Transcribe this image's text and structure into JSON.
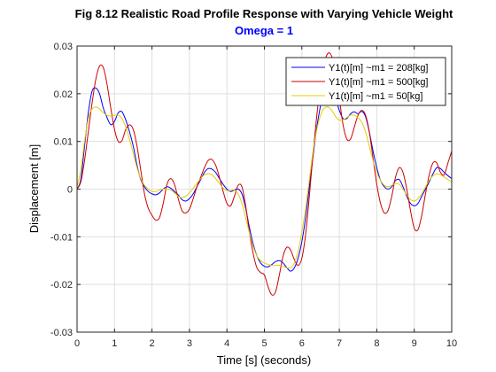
{
  "chart_data": {
    "type": "line",
    "title": "Fig 8.12 Realistic Road Profile Response with Varying Vehicle Weight",
    "subtitle": "Omega = 1",
    "subtitle_color": "#0000ff",
    "xlabel": "Time [s] (seconds)",
    "ylabel": "Displacement [m]",
    "xlim": [
      0,
      10
    ],
    "ylim": [
      -0.03,
      0.03
    ],
    "xticks": [
      0,
      1,
      2,
      3,
      4,
      5,
      6,
      7,
      8,
      9,
      10
    ],
    "xtick_labels": [
      "0",
      "1",
      "2",
      "3",
      "4",
      "5",
      "6",
      "7",
      "8",
      "9",
      "10"
    ],
    "yticks": [
      -0.03,
      -0.02,
      -0.01,
      0,
      0.01,
      0.02,
      0.03
    ],
    "ytick_labels": [
      "-0.03",
      "-0.02",
      "-0.01",
      "0",
      "0.01",
      "0.02",
      "0.03"
    ],
    "grid": true,
    "legend_position": "top-right",
    "series": [
      {
        "name": "Y1(t)[m] ~m1 = 208[kg]",
        "color": "#0000ff",
        "points": [
          [
            0,
            0
          ],
          [
            0.1,
            0.002
          ],
          [
            0.2,
            0.009
          ],
          [
            0.3,
            0.016
          ],
          [
            0.4,
            0.0205
          ],
          [
            0.5,
            0.0212
          ],
          [
            0.6,
            0.02
          ],
          [
            0.7,
            0.017
          ],
          [
            0.8,
            0.015
          ],
          [
            0.9,
            0.0135
          ],
          [
            1.0,
            0.0142
          ],
          [
            1.1,
            0.016
          ],
          [
            1.2,
            0.0162
          ],
          [
            1.3,
            0.0145
          ],
          [
            1.4,
            0.012
          ],
          [
            1.5,
            0.009
          ],
          [
            1.6,
            0.005
          ],
          [
            1.7,
            0.002
          ],
          [
            1.8,
            0.0005
          ],
          [
            1.9,
            -0.0005
          ],
          [
            2.0,
            -0.001
          ],
          [
            2.1,
            -0.0012
          ],
          [
            2.2,
            -0.0008
          ],
          [
            2.3,
            0
          ],
          [
            2.4,
            0.0005
          ],
          [
            2.5,
            0.0002
          ],
          [
            2.6,
            -0.0005
          ],
          [
            2.7,
            -0.0012
          ],
          [
            2.8,
            -0.0022
          ],
          [
            2.9,
            -0.0025
          ],
          [
            3.0,
            -0.002
          ],
          [
            3.1,
            -0.001
          ],
          [
            3.2,
            0.0005
          ],
          [
            3.3,
            0.002
          ],
          [
            3.4,
            0.0035
          ],
          [
            3.5,
            0.0043
          ],
          [
            3.6,
            0.0042
          ],
          [
            3.7,
            0.0035
          ],
          [
            3.8,
            0.0022
          ],
          [
            3.9,
            0.001
          ],
          [
            4.0,
            0
          ],
          [
            4.1,
            -0.0005
          ],
          [
            4.2,
            -0.0002
          ],
          [
            4.3,
            0
          ],
          [
            4.4,
            -0.001
          ],
          [
            4.5,
            -0.004
          ],
          [
            4.6,
            -0.008
          ],
          [
            4.7,
            -0.0115
          ],
          [
            4.8,
            -0.014
          ],
          [
            4.9,
            -0.0155
          ],
          [
            5.0,
            -0.0162
          ],
          [
            5.1,
            -0.0163
          ],
          [
            5.2,
            -0.0158
          ],
          [
            5.3,
            -0.0152
          ],
          [
            5.4,
            -0.015
          ],
          [
            5.5,
            -0.0155
          ],
          [
            5.6,
            -0.0165
          ],
          [
            5.7,
            -0.0172
          ],
          [
            5.8,
            -0.0165
          ],
          [
            5.9,
            -0.0145
          ],
          [
            6.0,
            -0.011
          ],
          [
            6.1,
            -0.006
          ],
          [
            6.2,
            0.0005
          ],
          [
            6.3,
            0.007
          ],
          [
            6.4,
            0.013
          ],
          [
            6.5,
            0.0175
          ],
          [
            6.6,
            0.0205
          ],
          [
            6.7,
            0.0218
          ],
          [
            6.8,
            0.0212
          ],
          [
            6.9,
            0.019
          ],
          [
            7.0,
            0.0165
          ],
          [
            7.1,
            0.0148
          ],
          [
            7.2,
            0.0148
          ],
          [
            7.3,
            0.0158
          ],
          [
            7.4,
            0.0162
          ],
          [
            7.5,
            0.0158
          ],
          [
            7.6,
            0.0163
          ],
          [
            7.7,
            0.0152
          ],
          [
            7.8,
            0.012
          ],
          [
            7.9,
            0.008
          ],
          [
            8.0,
            0.0045
          ],
          [
            8.1,
            0.0018
          ],
          [
            8.2,
            0.0005
          ],
          [
            8.3,
            0
          ],
          [
            8.4,
            0.0005
          ],
          [
            8.5,
            0.0018
          ],
          [
            8.6,
            0.002
          ],
          [
            8.7,
            0.0005
          ],
          [
            8.8,
            -0.0015
          ],
          [
            8.9,
            -0.003
          ],
          [
            9.0,
            -0.0035
          ],
          [
            9.1,
            -0.003
          ],
          [
            9.2,
            -0.0015
          ],
          [
            9.3,
            0
          ],
          [
            9.4,
            0.0015
          ],
          [
            9.5,
            0.0032
          ],
          [
            9.6,
            0.0045
          ],
          [
            9.7,
            0.0043
          ],
          [
            9.8,
            0.0035
          ],
          [
            9.9,
            0.0028
          ],
          [
            10.0,
            0.0022
          ]
        ]
      },
      {
        "name": "Y1(t)[m] ~m1 = 500[kg]",
        "color": "#cc0000",
        "points": [
          [
            0,
            0
          ],
          [
            0.1,
            0.0015
          ],
          [
            0.2,
            0.006
          ],
          [
            0.3,
            0.012
          ],
          [
            0.4,
            0.018
          ],
          [
            0.5,
            0.023
          ],
          [
            0.6,
            0.0258
          ],
          [
            0.7,
            0.0255
          ],
          [
            0.8,
            0.022
          ],
          [
            0.9,
            0.017
          ],
          [
            1.0,
            0.0125
          ],
          [
            1.1,
            0.01
          ],
          [
            1.2,
            0.0102
          ],
          [
            1.3,
            0.0125
          ],
          [
            1.4,
            0.0135
          ],
          [
            1.5,
            0.0125
          ],
          [
            1.6,
            0.009
          ],
          [
            1.7,
            0.004
          ],
          [
            1.8,
            -0.001
          ],
          [
            1.9,
            -0.004
          ],
          [
            2.0,
            -0.0055
          ],
          [
            2.1,
            -0.0065
          ],
          [
            2.2,
            -0.006
          ],
          [
            2.3,
            -0.003
          ],
          [
            2.4,
            0.001
          ],
          [
            2.5,
            0.0022
          ],
          [
            2.6,
            0.001
          ],
          [
            2.7,
            -0.002
          ],
          [
            2.8,
            -0.0045
          ],
          [
            2.9,
            -0.005
          ],
          [
            3.0,
            -0.0042
          ],
          [
            3.1,
            -0.002
          ],
          [
            3.2,
            0.0005
          ],
          [
            3.3,
            0.0025
          ],
          [
            3.4,
            0.0045
          ],
          [
            3.5,
            0.006
          ],
          [
            3.6,
            0.0062
          ],
          [
            3.7,
            0.005
          ],
          [
            3.8,
            0.0025
          ],
          [
            3.9,
            -0.0005
          ],
          [
            4.0,
            -0.003
          ],
          [
            4.1,
            -0.0035
          ],
          [
            4.2,
            -0.0015
          ],
          [
            4.3,
            0.0008
          ],
          [
            4.4,
            0.0005
          ],
          [
            4.5,
            -0.0035
          ],
          [
            4.6,
            -0.009
          ],
          [
            4.7,
            -0.0135
          ],
          [
            4.8,
            -0.0165
          ],
          [
            4.9,
            -0.0175
          ],
          [
            5.0,
            -0.018
          ],
          [
            5.1,
            -0.0205
          ],
          [
            5.2,
            -0.0222
          ],
          [
            5.3,
            -0.0215
          ],
          [
            5.4,
            -0.018
          ],
          [
            5.5,
            -0.014
          ],
          [
            5.6,
            -0.0122
          ],
          [
            5.7,
            -0.0128
          ],
          [
            5.8,
            -0.0148
          ],
          [
            5.9,
            -0.016
          ],
          [
            6.0,
            -0.0145
          ],
          [
            6.1,
            -0.0095
          ],
          [
            6.2,
            -0.0015
          ],
          [
            6.3,
            0.0075
          ],
          [
            6.4,
            0.0155
          ],
          [
            6.5,
            0.022
          ],
          [
            6.6,
            0.0265
          ],
          [
            6.7,
            0.0285
          ],
          [
            6.8,
            0.0278
          ],
          [
            6.9,
            0.0245
          ],
          [
            7.0,
            0.019
          ],
          [
            7.1,
            0.0135
          ],
          [
            7.2,
            0.0105
          ],
          [
            7.3,
            0.0105
          ],
          [
            7.4,
            0.013
          ],
          [
            7.5,
            0.0155
          ],
          [
            7.6,
            0.0165
          ],
          [
            7.7,
            0.0155
          ],
          [
            7.8,
            0.012
          ],
          [
            7.9,
            0.0065
          ],
          [
            8.0,
            0.001
          ],
          [
            8.1,
            -0.003
          ],
          [
            8.2,
            -0.005
          ],
          [
            8.3,
            -0.0045
          ],
          [
            8.4,
            -0.0015
          ],
          [
            8.5,
            0.0025
          ],
          [
            8.6,
            0.0045
          ],
          [
            8.7,
            0.0035
          ],
          [
            8.8,
            0
          ],
          [
            8.9,
            -0.0045
          ],
          [
            9.0,
            -0.0082
          ],
          [
            9.1,
            -0.0085
          ],
          [
            9.2,
            -0.0055
          ],
          [
            9.3,
            -0.001
          ],
          [
            9.4,
            0.003
          ],
          [
            9.5,
            0.0055
          ],
          [
            9.6,
            0.0055
          ],
          [
            9.7,
            0.0035
          ],
          [
            9.8,
            0.003
          ],
          [
            9.9,
            0.0055
          ],
          [
            10.0,
            0.008
          ]
        ]
      },
      {
        "name": "Y1(t)[m] ~m1 = 50[kg]",
        "color": "#e6cc00",
        "points": [
          [
            0,
            0.0005
          ],
          [
            0.1,
            0.004
          ],
          [
            0.2,
            0.01
          ],
          [
            0.3,
            0.0148
          ],
          [
            0.4,
            0.0168
          ],
          [
            0.5,
            0.0172
          ],
          [
            0.6,
            0.0168
          ],
          [
            0.7,
            0.016
          ],
          [
            0.8,
            0.0155
          ],
          [
            0.9,
            0.0153
          ],
          [
            1.0,
            0.0155
          ],
          [
            1.1,
            0.0155
          ],
          [
            1.2,
            0.0148
          ],
          [
            1.3,
            0.013
          ],
          [
            1.4,
            0.0105
          ],
          [
            1.5,
            0.0075
          ],
          [
            1.6,
            0.0045
          ],
          [
            1.7,
            0.0022
          ],
          [
            1.8,
            0.0008
          ],
          [
            1.9,
            0
          ],
          [
            2.0,
            -0.0005
          ],
          [
            2.1,
            -0.0005
          ],
          [
            2.2,
            -0.0002
          ],
          [
            2.3,
            0
          ],
          [
            2.4,
            0
          ],
          [
            2.5,
            -0.0002
          ],
          [
            2.6,
            -0.0008
          ],
          [
            2.7,
            -0.0015
          ],
          [
            2.8,
            -0.0018
          ],
          [
            2.9,
            -0.0015
          ],
          [
            3.0,
            -0.0008
          ],
          [
            3.1,
            0.0002
          ],
          [
            3.2,
            0.0012
          ],
          [
            3.3,
            0.0022
          ],
          [
            3.4,
            0.003
          ],
          [
            3.5,
            0.0032
          ],
          [
            3.6,
            0.003
          ],
          [
            3.7,
            0.0022
          ],
          [
            3.8,
            0.0012
          ],
          [
            3.9,
            0.0002
          ],
          [
            4.0,
            -0.0003
          ],
          [
            4.1,
            -0.0003
          ],
          [
            4.2,
            -0.0002
          ],
          [
            4.3,
            -0.001
          ],
          [
            4.4,
            -0.003
          ],
          [
            4.5,
            -0.006
          ],
          [
            4.6,
            -0.0092
          ],
          [
            4.7,
            -0.012
          ],
          [
            4.8,
            -0.014
          ],
          [
            4.9,
            -0.015
          ],
          [
            5.0,
            -0.0155
          ],
          [
            5.1,
            -0.0158
          ],
          [
            5.2,
            -0.016
          ],
          [
            5.3,
            -0.016
          ],
          [
            5.4,
            -0.016
          ],
          [
            5.5,
            -0.0162
          ],
          [
            5.6,
            -0.0165
          ],
          [
            5.7,
            -0.0165
          ],
          [
            5.8,
            -0.0155
          ],
          [
            5.9,
            -0.013
          ],
          [
            6.0,
            -0.009
          ],
          [
            6.1,
            -0.004
          ],
          [
            6.2,
            0.002
          ],
          [
            6.3,
            0.008
          ],
          [
            6.4,
            0.0125
          ],
          [
            6.5,
            0.0155
          ],
          [
            6.6,
            0.017
          ],
          [
            6.7,
            0.0172
          ],
          [
            6.8,
            0.0165
          ],
          [
            6.9,
            0.0152
          ],
          [
            7.0,
            0.0145
          ],
          [
            7.1,
            0.0145
          ],
          [
            7.2,
            0.015
          ],
          [
            7.3,
            0.0155
          ],
          [
            7.4,
            0.0155
          ],
          [
            7.5,
            0.015
          ],
          [
            7.6,
            0.014
          ],
          [
            7.7,
            0.012
          ],
          [
            7.8,
            0.009
          ],
          [
            7.9,
            0.006
          ],
          [
            8.0,
            0.0035
          ],
          [
            8.1,
            0.0018
          ],
          [
            8.2,
            0.0008
          ],
          [
            8.3,
            0.0005
          ],
          [
            8.4,
            0.0008
          ],
          [
            8.5,
            0.0012
          ],
          [
            8.6,
            0.001
          ],
          [
            8.7,
            0
          ],
          [
            8.8,
            -0.0012
          ],
          [
            8.9,
            -0.0022
          ],
          [
            9.0,
            -0.0025
          ],
          [
            9.1,
            -0.002
          ],
          [
            9.2,
            -0.001
          ],
          [
            9.3,
            0.0005
          ],
          [
            9.4,
            0.0018
          ],
          [
            9.5,
            0.0028
          ],
          [
            9.6,
            0.0032
          ],
          [
            9.7,
            0.003
          ],
          [
            9.8,
            0.0025
          ],
          [
            9.9,
            0.002
          ],
          [
            10.0,
            0.0015
          ]
        ]
      }
    ]
  }
}
